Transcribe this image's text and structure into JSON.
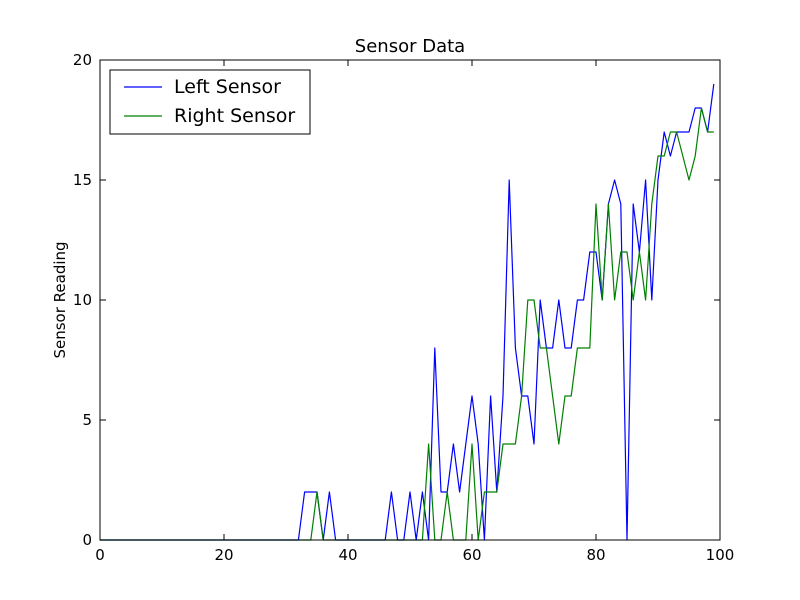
{
  "chart_data": {
    "type": "line",
    "title": "Sensor Data",
    "xlabel": "",
    "ylabel": "Sensor Reading",
    "xlim": [
      0,
      100
    ],
    "ylim": [
      0,
      20
    ],
    "xticks": [
      "0",
      "20",
      "40",
      "60",
      "80",
      "100"
    ],
    "yticks": [
      "0",
      "5",
      "10",
      "15",
      "20"
    ],
    "grid": false,
    "legend_position": "top-left",
    "x": [
      0,
      1,
      2,
      3,
      4,
      5,
      6,
      7,
      8,
      9,
      10,
      11,
      12,
      13,
      14,
      15,
      16,
      17,
      18,
      19,
      20,
      21,
      22,
      23,
      24,
      25,
      26,
      27,
      28,
      29,
      30,
      31,
      32,
      33,
      34,
      35,
      36,
      37,
      38,
      39,
      40,
      41,
      42,
      43,
      44,
      45,
      46,
      47,
      48,
      49,
      50,
      51,
      52,
      53,
      54,
      55,
      56,
      57,
      58,
      59,
      60,
      61,
      62,
      63,
      64,
      65,
      66,
      67,
      68,
      69,
      70,
      71,
      72,
      73,
      74,
      75,
      76,
      77,
      78,
      79,
      80,
      81,
      82,
      83,
      84,
      85,
      86,
      87,
      88,
      89,
      90,
      91,
      92,
      93,
      94,
      95,
      96,
      97,
      98,
      99
    ],
    "series": [
      {
        "name": "Left Sensor",
        "color": "#0000ff",
        "values": [
          0,
          0,
          0,
          0,
          0,
          0,
          0,
          0,
          0,
          0,
          0,
          0,
          0,
          0,
          0,
          0,
          0,
          0,
          0,
          0,
          0,
          0,
          0,
          0,
          0,
          0,
          0,
          0,
          0,
          0,
          0,
          0,
          0,
          2,
          2,
          2,
          0,
          2,
          0,
          0,
          0,
          0,
          0,
          0,
          0,
          0,
          0,
          2,
          0,
          0,
          2,
          0,
          2,
          0,
          8,
          2,
          2,
          4,
          2,
          4,
          6,
          4,
          0,
          6,
          2,
          6,
          15,
          8,
          6,
          6,
          4,
          10,
          8,
          8,
          10,
          8,
          8,
          10,
          10,
          12,
          12,
          10,
          14,
          15,
          14,
          0,
          14,
          12,
          15,
          10,
          15,
          17,
          16,
          17,
          17,
          17,
          18,
          18,
          17,
          19
        ]
      },
      {
        "name": "Right Sensor",
        "color": "#008000",
        "values": [
          0,
          0,
          0,
          0,
          0,
          0,
          0,
          0,
          0,
          0,
          0,
          0,
          0,
          0,
          0,
          0,
          0,
          0,
          0,
          0,
          0,
          0,
          0,
          0,
          0,
          0,
          0,
          0,
          0,
          0,
          0,
          0,
          0,
          0,
          0,
          2,
          0,
          0,
          0,
          0,
          0,
          0,
          0,
          0,
          0,
          0,
          0,
          0,
          0,
          0,
          0,
          0,
          0,
          4,
          0,
          0,
          2,
          0,
          0,
          0,
          4,
          0,
          2,
          2,
          2,
          4,
          4,
          4,
          6,
          10,
          10,
          8,
          8,
          6,
          4,
          6,
          6,
          8,
          8,
          8,
          14,
          10,
          14,
          10,
          12,
          12,
          10,
          12,
          10,
          14,
          16,
          16,
          17,
          17,
          16,
          15,
          16,
          18,
          17,
          17
        ]
      }
    ]
  }
}
